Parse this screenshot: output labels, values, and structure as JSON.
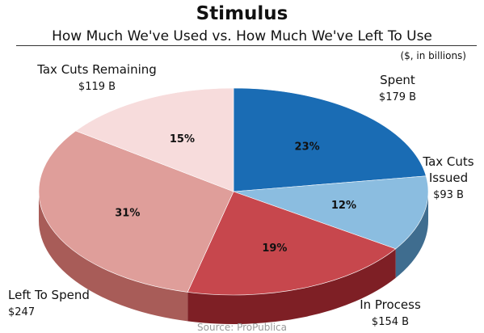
{
  "title": "Stimulus",
  "subtitle": "How Much We've Used vs. How Much We've Left To Use",
  "units": "($, in billions)",
  "source": "Source: ProPublica",
  "chart_data": {
    "type": "pie",
    "title": "Stimulus",
    "subtitle": "How Much We've Used vs. How Much We've Left To Use",
    "units": "($, in billions)",
    "slices": [
      {
        "name": "Spent",
        "amount_label": "$179 B",
        "value": 179,
        "percent_label": "23%",
        "color": "#1a6cb4",
        "side_color": "#0e4c82"
      },
      {
        "name": "Tax Cuts Issued",
        "name_lines": [
          "Tax Cuts",
          "Issued"
        ],
        "amount_label": "$93 B",
        "value": 93,
        "percent_label": "12%",
        "color": "#8bbde0",
        "side_color": "#3f6d8f"
      },
      {
        "name": "In Process",
        "amount_label": "$154 B",
        "value": 154,
        "percent_label": "19%",
        "color": "#c7474d",
        "side_color": "#7e1f25"
      },
      {
        "name": "Left To Spend",
        "amount_label": "$247",
        "value": 247,
        "percent_label": "31%",
        "color": "#df9e9a",
        "side_color": "#a85c58"
      },
      {
        "name": "Tax Cuts Remaining",
        "amount_label": "$119 B",
        "value": 119,
        "percent_label": "15%",
        "color": "#f7dcdc",
        "side_color": "#c6a0a0"
      }
    ]
  }
}
